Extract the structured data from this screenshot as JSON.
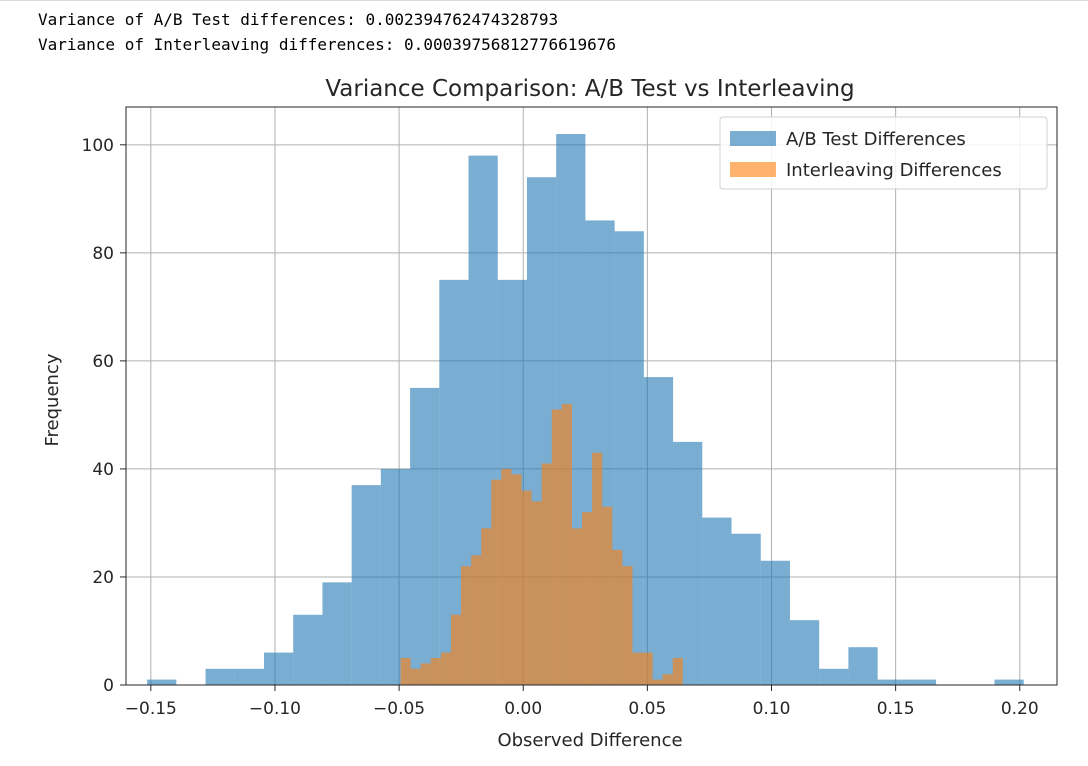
{
  "console": {
    "line1": "Variance of A/B Test differences: 0.002394762474328793",
    "line2": "Variance of Interleaving differences: 0.00039756812776619676"
  },
  "chart_data": {
    "type": "histogram",
    "title": "Variance Comparison: A/B Test vs Interleaving",
    "xlabel": "Observed Difference",
    "ylabel": "Frequency",
    "xlim": [
      -0.16,
      0.215
    ],
    "ylim": [
      0,
      107
    ],
    "xticks": [
      -0.15,
      -0.1,
      -0.05,
      0.0,
      0.05,
      0.1,
      0.15,
      0.2
    ],
    "xtick_labels": [
      "−0.15",
      "−0.10",
      "−0.05",
      "0.00",
      "0.05",
      "0.10",
      "0.15",
      "0.20"
    ],
    "yticks": [
      0,
      20,
      40,
      60,
      80,
      100
    ],
    "ytick_labels": [
      "0",
      "20",
      "40",
      "60",
      "80",
      "100"
    ],
    "grid": true,
    "legend_position": "top-right",
    "series": [
      {
        "name": "A/B Test Differences",
        "color": "#1f77b4",
        "opacity": 0.6,
        "bin_start": -0.1515,
        "bin_width": 0.01177,
        "counts": [
          1,
          0,
          3,
          3,
          6,
          13,
          19,
          37,
          40,
          55,
          75,
          98,
          75,
          94,
          102,
          86,
          84,
          57,
          45,
          31,
          28,
          23,
          12,
          3,
          7,
          1,
          1,
          0,
          0,
          1
        ]
      },
      {
        "name": "Interleaving Differences",
        "color": "#ff7f0e",
        "opacity": 0.6,
        "bin_start": -0.0494,
        "bin_width": 0.00406,
        "counts": [
          5,
          3,
          4,
          5,
          6,
          13,
          22,
          24,
          29,
          38,
          40,
          39,
          36,
          34,
          41,
          51,
          52,
          29,
          32,
          43,
          33,
          25,
          22,
          6,
          6,
          1,
          2,
          5
        ]
      }
    ]
  }
}
